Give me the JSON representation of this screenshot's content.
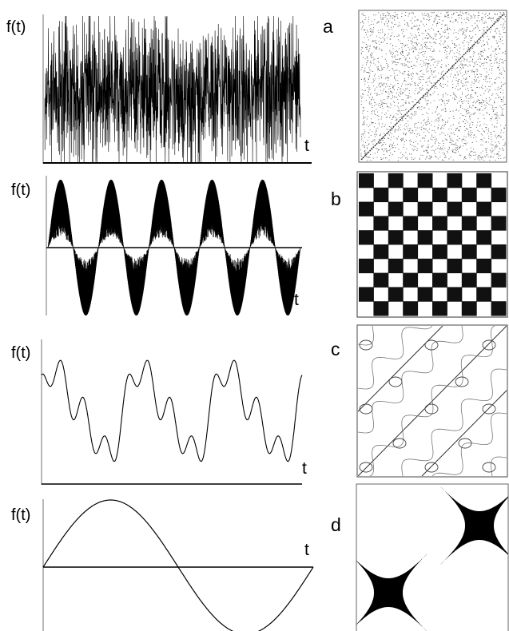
{
  "figure": {
    "rows": [
      {
        "id": "a",
        "letter": "a",
        "function_label": "f(t)",
        "time_label": "t",
        "signal_description": "dense broadband chaotic signal",
        "phase_portrait": "diffuse noise with diagonal line"
      },
      {
        "id": "b",
        "letter": "b",
        "function_label": "f(t)",
        "time_label": "t",
        "signal_description": "high-frequency carrier with slow envelope (5 periods)",
        "phase_portrait": "checkerboard pattern"
      },
      {
        "id": "c",
        "letter": "c",
        "function_label": "f(t)",
        "time_label": "t",
        "signal_description": "sum of harmonics (3 periods)",
        "phase_portrait": "lattice of curves with diagonal lines"
      },
      {
        "id": "d",
        "letter": "d",
        "function_label": "f(t)",
        "time_label": "t",
        "signal_description": "single sine period",
        "phase_portrait": "two star-shaped blobs on a diagonal"
      }
    ]
  },
  "colors": {
    "ink": "#000000",
    "axis": "#8a8a8a",
    "background": "#ffffff"
  }
}
